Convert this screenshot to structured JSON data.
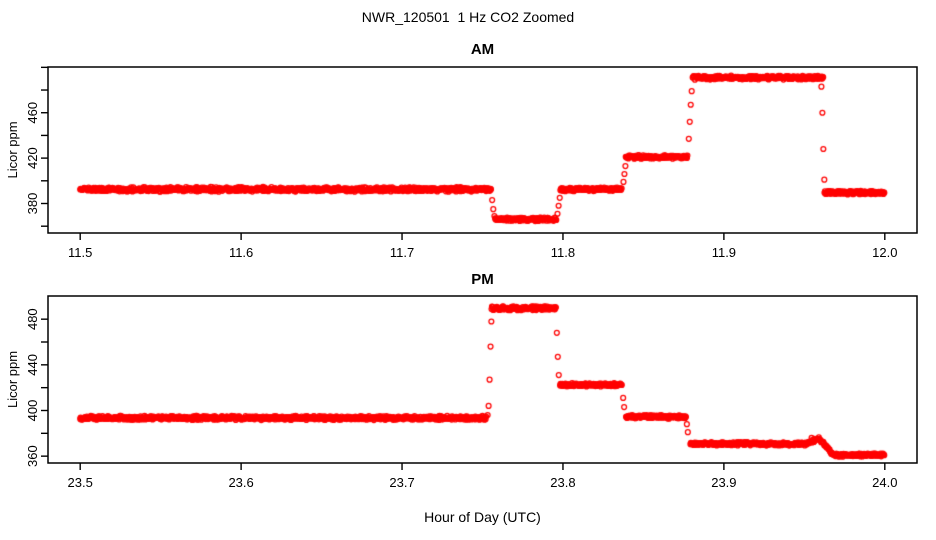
{
  "title": "NWR_120501  1 Hz CO2 Zoomed",
  "xlabel": "Hour of Day (UTC)",
  "point_color": "#FF0000",
  "axis_color": "#000000",
  "chart_data": [
    {
      "type": "scatter",
      "title": "AM",
      "ylabel": "Licor ppm",
      "xlabel": "Hour of Day (UTC)",
      "xlim": [
        11.48,
        12.02
      ],
      "ylim": [
        354.0,
        500.3
      ],
      "grid": false,
      "legend": null,
      "sample_rate_hz": 1,
      "xtick_values": [
        11.5,
        11.6,
        11.7,
        11.8,
        11.9,
        12.0
      ],
      "xtick_labels": [
        "11.5",
        "11.6",
        "11.7",
        "11.8",
        "11.9",
        "12.0"
      ],
      "ytick_values": [
        360,
        380,
        400,
        420,
        440,
        460,
        480,
        500
      ],
      "ytick_labels": [
        "",
        "380",
        "",
        "420",
        "",
        "460",
        "",
        ""
      ],
      "segments": [
        {
          "t0": 11.5,
          "t1": 11.7555,
          "value": 392.5,
          "noise": 2.2
        },
        {
          "t0": 11.7578,
          "t1": 11.7962,
          "value": 366.0,
          "noise": 1.8
        },
        {
          "t0": 11.7984,
          "t1": 11.8368,
          "value": 392.5,
          "noise": 1.8
        },
        {
          "t0": 11.839,
          "t1": 11.8776,
          "value": 421.0,
          "noise": 1.7
        },
        {
          "t0": 11.8806,
          "t1": 11.962,
          "value": 491.0,
          "noise": 2.0
        },
        {
          "t0": 11.9625,
          "t1": 12.0,
          "value": 389.5,
          "noise": 1.7
        }
      ],
      "transition_points": [
        [
          11.756,
          383
        ],
        [
          11.7567,
          375
        ],
        [
          11.7574,
          369
        ],
        [
          11.7966,
          371
        ],
        [
          11.7973,
          378
        ],
        [
          11.798,
          385
        ],
        [
          11.8376,
          399
        ],
        [
          11.8382,
          406
        ],
        [
          11.8388,
          413
        ],
        [
          11.8782,
          437
        ],
        [
          11.8788,
          452
        ],
        [
          11.8794,
          467
        ],
        [
          11.88,
          479
        ],
        [
          11.9606,
          483
        ],
        [
          11.9612,
          460
        ],
        [
          11.9618,
          428
        ],
        [
          11.9624,
          401
        ]
      ]
    },
    {
      "type": "scatter",
      "title": "PM",
      "ylabel": "Licor ppm",
      "xlabel": "Hour of Day (UTC)",
      "xlim": [
        23.48,
        24.02
      ],
      "ylim": [
        354.0,
        500.3
      ],
      "grid": false,
      "legend": null,
      "sample_rate_hz": 1,
      "xtick_values": [
        23.5,
        23.6,
        23.7,
        23.8,
        23.9,
        24.0
      ],
      "xtick_labels": [
        "23.5",
        "23.6",
        "23.7",
        "23.8",
        "23.9",
        "24.0"
      ],
      "ytick_values": [
        360,
        380,
        400,
        420,
        440,
        460,
        480
      ],
      "ytick_labels": [
        "360",
        "",
        "400",
        "",
        "440",
        "",
        "480"
      ],
      "segments": [
        {
          "t0": 23.5,
          "t1": 23.7525,
          "value": 393.5,
          "noise": 2.0
        },
        {
          "t0": 23.7556,
          "t1": 23.7958,
          "value": 489.5,
          "noise": 2.0
        },
        {
          "t0": 23.7982,
          "t1": 23.8368,
          "value": 422.5,
          "noise": 1.7
        },
        {
          "t0": 23.8392,
          "t1": 23.8766,
          "value": 394.5,
          "noise": 1.7
        },
        {
          "t0": 23.8792,
          "t1": 23.952,
          "value": 370.8,
          "noise": 1.7
        },
        {
          "t0": 23.952,
          "t1": 23.959,
          "value": 371.5,
          "value_end": 375.5,
          "noise": 1.5
        },
        {
          "t0": 23.959,
          "t1": 23.968,
          "value": 375.5,
          "value_end": 361.5,
          "noise": 1.5
        },
        {
          "t0": 23.968,
          "t1": 24.0,
          "value": 361.0,
          "noise": 1.6
        }
      ],
      "transition_points": [
        [
          23.7532,
          396
        ],
        [
          23.7538,
          404
        ],
        [
          23.7544,
          427
        ],
        [
          23.755,
          456
        ],
        [
          23.7555,
          478
        ],
        [
          23.7962,
          468
        ],
        [
          23.7968,
          447
        ],
        [
          23.7974,
          431
        ],
        [
          23.8374,
          411
        ],
        [
          23.838,
          403
        ],
        [
          23.877,
          388
        ],
        [
          23.8776,
          381
        ],
        [
          23.9545,
          376
        ]
      ]
    }
  ]
}
